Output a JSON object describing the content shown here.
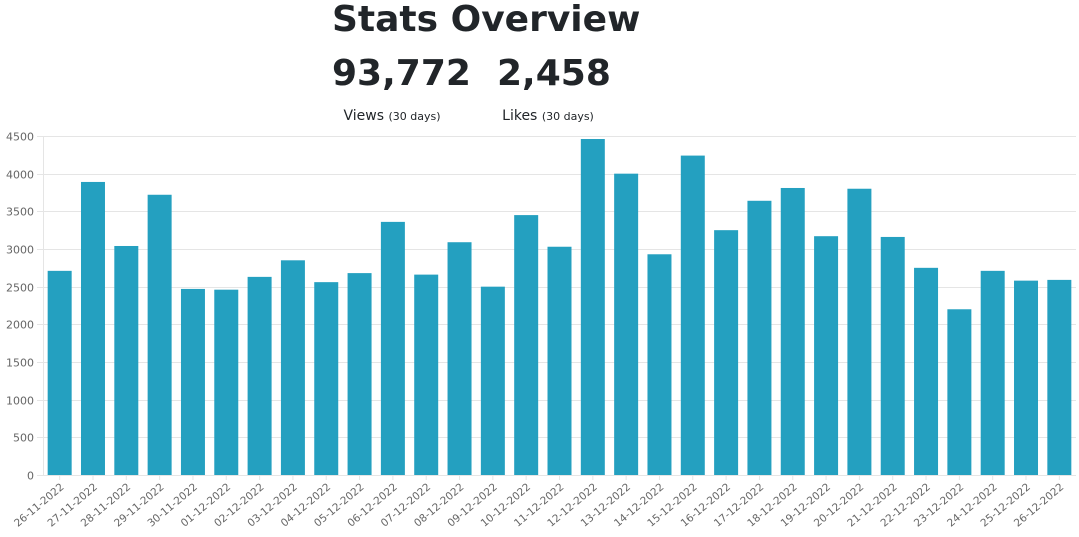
{
  "header": {
    "title": "Stats Overview"
  },
  "stats": {
    "views": {
      "value": "93,772",
      "label": "Views",
      "period": "(30 days)"
    },
    "likes": {
      "value": "2,458",
      "label": "Likes",
      "period": "(30 days)"
    }
  },
  "colors": {
    "bar": "#24a0c0",
    "grid": "#e5e5e5",
    "axis": "#666666"
  },
  "chart_data": {
    "type": "bar",
    "title": "",
    "xlabel": "",
    "ylabel": "",
    "ylim": [
      0,
      4500
    ],
    "yticks": [
      0,
      500,
      1000,
      1500,
      2000,
      2500,
      3000,
      3500,
      4000,
      4500
    ],
    "grid": true,
    "legend": "none",
    "categories": [
      "26-11-2022",
      "27-11-2022",
      "28-11-2022",
      "29-11-2022",
      "30-11-2022",
      "01-12-2022",
      "02-12-2022",
      "03-12-2022",
      "04-12-2022",
      "05-12-2022",
      "06-12-2022",
      "07-12-2022",
      "08-12-2022",
      "09-12-2022",
      "10-12-2022",
      "11-12-2022",
      "12-12-2022",
      "13-12-2022",
      "14-12-2022",
      "15-12-2022",
      "16-12-2022",
      "17-12-2022",
      "18-12-2022",
      "19-12-2022",
      "20-12-2022",
      "21-12-2022",
      "22-12-2022",
      "23-12-2022",
      "24-12-2022",
      "25-12-2022",
      "26-12-2022"
    ],
    "values": [
      2710,
      3890,
      3040,
      3720,
      2470,
      2460,
      2630,
      2850,
      2560,
      2680,
      3360,
      2660,
      3090,
      2500,
      3450,
      3030,
      4460,
      4000,
      2930,
      4240,
      3250,
      3640,
      3810,
      3170,
      3800,
      3160,
      2750,
      2200,
      2710,
      2580,
      2590
    ]
  }
}
